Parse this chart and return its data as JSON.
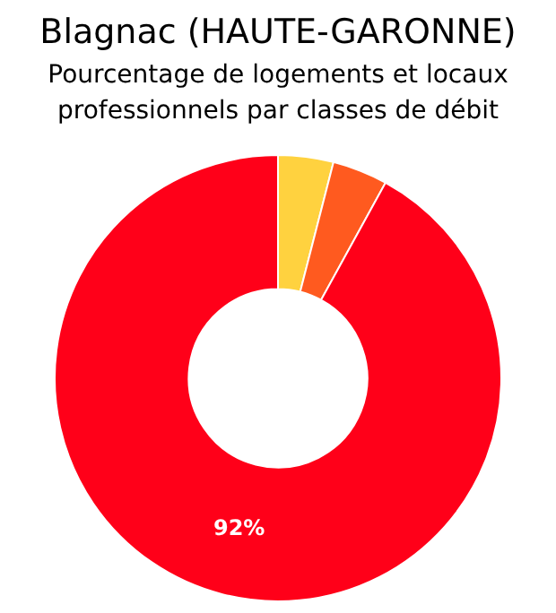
{
  "chart_data": {
    "type": "donut",
    "title": "Blagnac (HAUTE-GARONNE)",
    "subtitle": "Pourcentage de logements et locaux professionnels par classes de débit",
    "categories": [
      null,
      null,
      null
    ],
    "values": [
      4,
      4,
      92
    ],
    "colors": [
      "#ffd23f",
      "#ff5a1f",
      "#ff0019"
    ],
    "value_labels": [
      null,
      null,
      "92%"
    ],
    "legend": false
  }
}
